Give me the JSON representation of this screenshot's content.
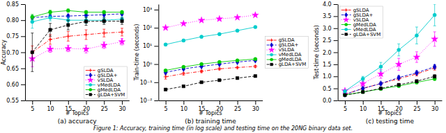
{
  "chart_data": [
    {
      "type": "line",
      "title": "(a) accuracy",
      "xlabel": "# Topics",
      "ylabel": "Accuracy",
      "x": [
        5,
        10,
        15,
        20,
        25,
        30
      ],
      "xlim": [
        3,
        32
      ],
      "xticks": [
        5,
        10,
        15,
        20,
        25,
        30
      ],
      "ylim": [
        0.55,
        0.85
      ],
      "yticks": [
        0.55,
        {
          "value": 0.6,
          "label": "0.60"
        },
        0.65,
        {
          "value": 0.7,
          "label": "0.70"
        },
        0.75,
        {
          "value": 0.8,
          "label": "0.80"
        },
        0.85
      ],
      "grid": false,
      "legend": "lower right",
      "series": [
        {
          "name": "gSLDA",
          "color": "#ff0000",
          "line_style": "dashdot",
          "marker": "plus",
          "values": [
            0.7,
            0.74,
            0.75,
            0.755,
            0.76,
            0.763
          ],
          "errors": [
            0.02,
            0.015,
            0.015,
            0.015,
            0.012,
            0.012
          ]
        },
        {
          "name": "gSLDA+",
          "color": "#0000cc",
          "line_style": "dashed",
          "marker": "diamond",
          "values": [
            0.808,
            0.812,
            0.813,
            0.815,
            0.817,
            0.82
          ],
          "errors": [
            0.005,
            0.005,
            0.005,
            0.004,
            0.004,
            0.004
          ]
        },
        {
          "name": "vSLDA",
          "color": "#ff00ff",
          "line_style": "dotted",
          "marker": "star",
          "values": [
            0.68,
            0.71,
            0.712,
            0.71,
            0.722,
            0.733
          ],
          "errors": [
            0.025,
            0.01,
            0.01,
            0.012,
            0.01,
            0.01
          ]
        },
        {
          "name": "vMedLDA",
          "color": "#00cccc",
          "line_style": "solid",
          "marker": "circle",
          "values": [
            0.795,
            0.808,
            0.8,
            0.8,
            0.8,
            0.803
          ],
          "errors": [
            0.02,
            0.01,
            0.01,
            0.01,
            0.008,
            0.008
          ]
        },
        {
          "name": "gMedLDA",
          "color": "#00cc00",
          "line_style": "solid",
          "marker": "circle",
          "values": [
            0.81,
            0.825,
            0.83,
            0.825,
            0.825,
            0.825
          ],
          "errors": [
            0.008,
            0.006,
            0.005,
            0.005,
            0.005,
            0.005
          ]
        },
        {
          "name": "gLDA+SVM",
          "color": "#000000",
          "line_style": "dashed",
          "marker": "square",
          "values": [
            0.7,
            0.77,
            0.785,
            0.796,
            0.797,
            0.797
          ],
          "errors": [
            0.06,
            0.02,
            0.015,
            0.012,
            0.01,
            0.01
          ]
        }
      ]
    },
    {
      "type": "line",
      "title": "(b) training time",
      "xlabel": "# Topics",
      "ylabel": "Train-time (seconds)",
      "x": [
        5,
        10,
        15,
        20,
        25,
        30
      ],
      "xlim": [
        3,
        32
      ],
      "xticks": [
        5,
        10,
        15,
        20,
        25,
        30
      ],
      "log": "y",
      "ylim": [
        0.01,
        2000
      ],
      "yticks": [
        {
          "value": 0.01,
          "label": "10⁻²"
        },
        {
          "value": 0.1,
          "label": "10⁻¹"
        },
        {
          "value": 1,
          "label": "10⁰"
        },
        {
          "value": 10,
          "label": "10¹"
        },
        {
          "value": 100,
          "label": "10²"
        },
        {
          "value": 1000,
          "label": "10³"
        }
      ],
      "grid": false,
      "legend": "right",
      "series": [
        {
          "name": "gSLDA",
          "color": "#ff0000",
          "line_style": "dashdot",
          "marker": "plus",
          "values": [
            0.2,
            0.3,
            0.4,
            0.55,
            0.65,
            0.75
          ],
          "errors": [
            0.05,
            0.05,
            0.06,
            0.07,
            0.08,
            0.1
          ]
        },
        {
          "name": "gSLDA+",
          "color": "#0000cc",
          "line_style": "dashed",
          "marker": "diamond",
          "values": [
            0.35,
            0.55,
            0.75,
            1.0,
            1.3,
            1.6
          ],
          "errors": [
            0.05,
            0.06,
            0.07,
            0.09,
            0.1,
            0.12
          ]
        },
        {
          "name": "vSLDA",
          "color": "#ff00ff",
          "line_style": "dotted",
          "marker": "star",
          "values": [
            100,
            170,
            260,
            310,
            370,
            500
          ],
          "errors": [
            10,
            15,
            20,
            25,
            30,
            40
          ]
        },
        {
          "name": "vMedLDA",
          "color": "#00cccc",
          "line_style": "solid",
          "marker": "circle",
          "values": [
            12,
            20,
            32,
            45,
            70,
            110
          ],
          "errors": [
            2,
            3,
            5,
            7,
            10,
            15
          ]
        },
        {
          "name": "gMedLDA",
          "color": "#00cc00",
          "line_style": "solid",
          "marker": "circle",
          "values": [
            0.45,
            0.7,
            1.0,
            1.3,
            1.6,
            1.9
          ],
          "errors": [
            0.05,
            0.06,
            0.07,
            0.08,
            0.09,
            0.1
          ]
        },
        {
          "name": "gLDA+SVM",
          "color": "#000000",
          "line_style": "dashed",
          "marker": "square",
          "values": [
            0.04,
            0.06,
            0.1,
            0.13,
            0.17,
            0.22
          ],
          "errors": [
            0.005,
            0.006,
            0.008,
            0.01,
            0.012,
            0.015
          ]
        }
      ]
    },
    {
      "type": "line",
      "title": "(c) testing time",
      "xlabel": "# Topics",
      "ylabel": "Test-time (seconds)",
      "x": [
        5,
        10,
        15,
        20,
        25,
        30
      ],
      "xlim": [
        3,
        32
      ],
      "xticks": [
        5,
        10,
        15,
        20,
        25,
        30
      ],
      "ylim": [
        0,
        4.0
      ],
      "yticks": [
        {
          "value": 0,
          "label": "0.0"
        },
        0.5,
        {
          "value": 1,
          "label": "1.0"
        },
        1.5,
        {
          "value": 2,
          "label": "2.0"
        },
        2.5,
        {
          "value": 3,
          "label": "3.0"
        },
        3.5,
        {
          "value": 4,
          "label": "4.0"
        }
      ],
      "grid": false,
      "legend": "upper left",
      "series": [
        {
          "name": "gSLDA",
          "color": "#ff0000",
          "line_style": "dashdot",
          "marker": "plus",
          "values": [
            0.25,
            0.5,
            0.7,
            0.9,
            1.1,
            1.35
          ],
          "errors": [
            0.03,
            0.05,
            0.06,
            0.07,
            0.08,
            0.09
          ]
        },
        {
          "name": "gSLDA+",
          "color": "#0000cc",
          "line_style": "dashed",
          "marker": "diamond",
          "values": [
            0.25,
            0.5,
            0.7,
            0.95,
            1.15,
            1.4
          ],
          "errors": [
            0.03,
            0.05,
            0.06,
            0.07,
            0.08,
            0.09
          ]
        },
        {
          "name": "vSLDA",
          "color": "#ff00ff",
          "line_style": "dotted",
          "marker": "star",
          "values": [
            0.4,
            0.7,
            1.1,
            1.5,
            1.8,
            2.55
          ],
          "errors": [
            0.05,
            0.1,
            0.18,
            0.25,
            0.22,
            0.3
          ]
        },
        {
          "name": "gMedLDA",
          "color": "#00cc00",
          "line_style": "solid",
          "marker": "circle",
          "values": [
            0.23,
            0.35,
            0.48,
            0.6,
            0.75,
            0.9
          ],
          "errors": [
            0.02,
            0.03,
            0.04,
            0.05,
            0.06,
            0.07
          ]
        },
        {
          "name": "vMedLDA",
          "color": "#00cccc",
          "line_style": "solid",
          "marker": "circle",
          "values": [
            0.38,
            0.9,
            1.4,
            2.1,
            2.7,
            3.55
          ],
          "errors": [
            0.05,
            0.1,
            0.18,
            0.25,
            0.35,
            0.45
          ]
        },
        {
          "name": "gLDA+SVM",
          "color": "#000000",
          "line_style": "dashed",
          "marker": "square",
          "values": [
            0.22,
            0.35,
            0.5,
            0.65,
            0.8,
            1.0
          ],
          "errors": [
            0.02,
            0.03,
            0.04,
            0.05,
            0.06,
            0.07
          ]
        }
      ]
    }
  ],
  "caption": "Figure 1: Accuracy, training time (in log scale) and testing time on the 20NG binary data set."
}
